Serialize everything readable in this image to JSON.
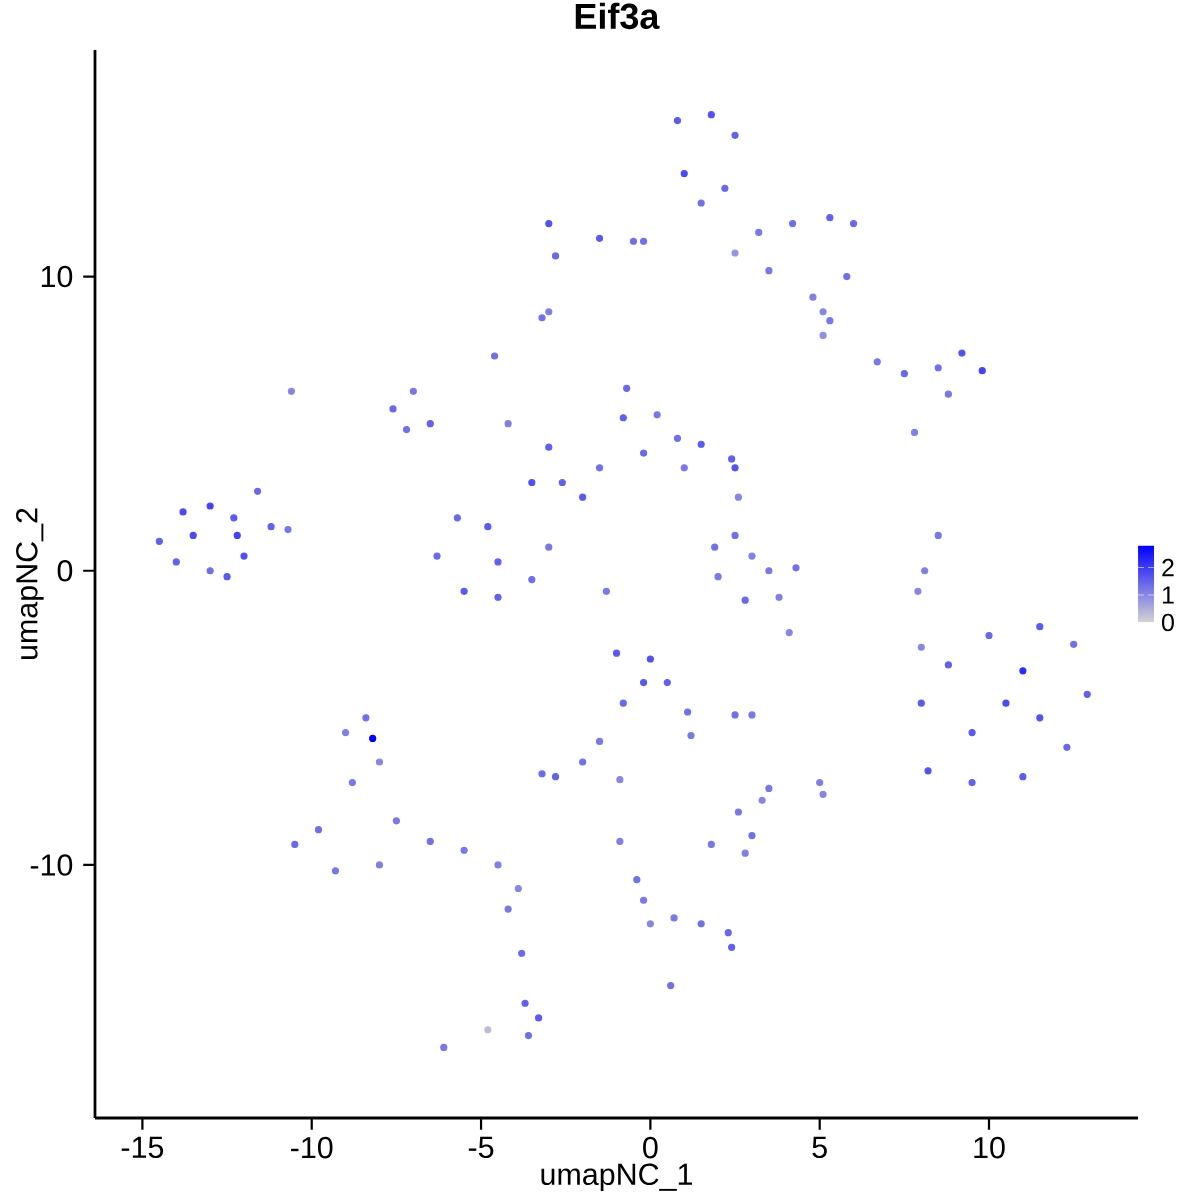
{
  "chart_data": {
    "type": "scatter",
    "title": "**Eif3a**",
    "xlabel": "umapNC_1",
    "ylabel": "umapNC_2",
    "xlim": [
      -16.4,
      14.4
    ],
    "ylim": [
      -18.6,
      17.7
    ],
    "xticks": [
      -15,
      -10,
      -5,
      0,
      5,
      10
    ],
    "yticks": [
      -10,
      0,
      10
    ],
    "clim": [
      0,
      2.8
    ],
    "cticks": [
      0,
      1,
      2
    ],
    "marker": "circle",
    "grid": false,
    "x": [
      -14.5,
      -13.8,
      -13,
      -12.3,
      -11.6,
      -11.2,
      -10.7,
      -12,
      -13,
      -14,
      -12.5,
      -13.5,
      -12.2,
      -10.6,
      -7.6,
      -7,
      -6.5,
      -7.2,
      -3.5,
      -2.6,
      -2,
      -6.3,
      -5.5,
      -4.5,
      -3.5,
      -3,
      -4.8,
      -5.7,
      -4.5,
      -1.5,
      -0.8,
      -0.7,
      0.2,
      0.8,
      1.5,
      2.4,
      2.5,
      -0.2,
      1,
      -4.6,
      -4.2,
      -3,
      -1.3,
      0.8,
      1.8,
      2.5,
      1,
      2.2,
      1.5,
      3.2,
      4.2,
      5.3,
      6,
      5.8,
      4.8,
      3.5,
      2.5,
      -0.5,
      -1.5,
      -3,
      -2.8,
      -0.2,
      5.3,
      5.1,
      -3,
      -3.2,
      6.7,
      7.5,
      8.5,
      9.2,
      9.8,
      8.8,
      7.8,
      2.5,
      3,
      3.5,
      4.3,
      3.8,
      2.8,
      2,
      1.9,
      2.6,
      8.5,
      8.1,
      7.9,
      8,
      8,
      8.2,
      9.5,
      11,
      12.3,
      12.9,
      12.5,
      11.5,
      10,
      8.8,
      10.5,
      9.5,
      11.5,
      11,
      -9.8,
      -10.5,
      -9.3,
      -8,
      -8.8,
      -9,
      -8.4,
      -8,
      -7.5,
      -6.5,
      -5.5,
      -4.5,
      -3.9,
      -8.2,
      -4.2,
      -3.8,
      -3.7,
      -3.3,
      -3.6,
      -6.1,
      -4.8,
      -1,
      0,
      0.5,
      1.1,
      1.2,
      -0.8,
      -0.2,
      -2.8,
      -3.2,
      -2,
      -1.5,
      -0.9,
      1.8,
      2.8,
      3,
      2.6,
      3.3,
      3.5,
      2.5,
      3,
      5,
      5.1,
      -0.9,
      -0.4,
      -0.2,
      0,
      0.7,
      1.5,
      2.3,
      2.4,
      0.6,
      4.1,
      5.1
    ],
    "values": [
      1,
      2,
      2.2,
      1.8,
      2.7,
      1.5,
      1.4,
      0.5,
      0,
      0.3,
      -0.2,
      1.2,
      1.2,
      6.1,
      5.5,
      6.1,
      5,
      4.8,
      3,
      3,
      2.5,
      0.5,
      -0.7,
      -0.9,
      -0.3,
      0.8,
      1.5,
      1.8,
      0.3,
      3.5,
      5.2,
      6.2,
      5.3,
      4.5,
      4.3,
      3.8,
      3.5,
      4,
      3.5,
      7.3,
      5,
      4.2,
      -0.7,
      15.3,
      15.5,
      14.8,
      13.5,
      13,
      12.5,
      11.5,
      11.8,
      12,
      11.8,
      10,
      9.3,
      10.2,
      10.8,
      11.2,
      11.3,
      11.8,
      10.7,
      11.2,
      8.5,
      8.8,
      8.8,
      8.6,
      7.1,
      6.7,
      6.9,
      7.4,
      6.8,
      6,
      4.7,
      1.2,
      0.5,
      0,
      0.1,
      -0.9,
      -1,
      -0.2,
      0.8,
      2.5,
      1.2,
      0,
      -0.7,
      -2.6,
      -4.5,
      -6.8,
      -7.2,
      -7,
      -6,
      -4.2,
      -2.5,
      -1.9,
      -2.2,
      -3.2,
      -4.5,
      -5.5,
      -5,
      -3.4,
      -8.8,
      -9.3,
      -10.2,
      -10,
      -7.2,
      -5.5,
      -5,
      -6.5,
      -8.5,
      -9.2,
      -9.5,
      -10,
      -10.8,
      -5.7,
      -11.5,
      -13,
      -14.7,
      -15.2,
      -15.8,
      -16.2,
      -15.6,
      -2.8,
      -3,
      -3.8,
      -4.8,
      -5.6,
      -4.5,
      -3.8,
      -7,
      -6.9,
      -6.5,
      -5.8,
      -7.1,
      -9.3,
      -9.6,
      -9,
      -8.2,
      -7.8,
      -7.4,
      -4.9,
      -4.9,
      -7.2,
      -7.6,
      -9.2,
      -10.5,
      -11.2,
      -12,
      -11.8,
      -12,
      -12.3,
      -12.8,
      -14.1,
      -2.1,
      8
    ],
    "cvalues": [
      1.5,
      1.8,
      1.9,
      1.6,
      1.4,
      1.5,
      1.2,
      1.7,
      1.3,
      1.5,
      1.6,
      1.8,
      1.9,
      1,
      1.4,
      1.2,
      1.5,
      1.3,
      1.7,
      1.5,
      1.6,
      1.4,
      1.6,
      1.5,
      1.3,
      1.2,
      1.6,
      1.4,
      1.5,
      1.3,
      1.5,
      1.4,
      1.2,
      1.3,
      1.6,
      1.5,
      1.7,
      1.4,
      1.2,
      1.3,
      1.1,
      1.5,
      1.2,
      1.6,
      1.7,
      1.5,
      1.8,
      1.4,
      1.3,
      1.2,
      1.3,
      1.5,
      1.4,
      1.3,
      1.1,
      1.2,
      0.8,
      1.3,
      1.6,
      1.7,
      1.4,
      1.3,
      1.2,
      1,
      1.1,
      1.3,
      1.2,
      1.4,
      1.3,
      1.7,
      1.9,
      1.2,
      1.1,
      1.3,
      1.1,
      1.2,
      1.3,
      1.1,
      1.4,
      1.2,
      1.3,
      1,
      1.2,
      1.1,
      1,
      1,
      1.6,
      1.7,
      1.5,
      1.6,
      1.4,
      1.5,
      1.3,
      1.6,
      1.4,
      1.5,
      1.8,
      1.6,
      1.7,
      2.2,
      1.3,
      1.4,
      1.2,
      1.1,
      1.2,
      1.1,
      1.3,
      1,
      1.2,
      1.3,
      1.2,
      1.1,
      1,
      2.8,
      1.2,
      1.4,
      1.5,
      1.6,
      1.3,
      1.2,
      0.3,
      1.6,
      1.7,
      1.5,
      1.3,
      1.2,
      1.4,
      1.6,
      1.5,
      1.4,
      1.3,
      1.2,
      1,
      1.2,
      1.1,
      1.3,
      1.2,
      1,
      1.2,
      1.3,
      1.2,
      1.1,
      1,
      1.1,
      1.3,
      1.2,
      1,
      1.2,
      1.3,
      1.4,
      1.5,
      1.3,
      1,
      0.9
    ]
  }
}
